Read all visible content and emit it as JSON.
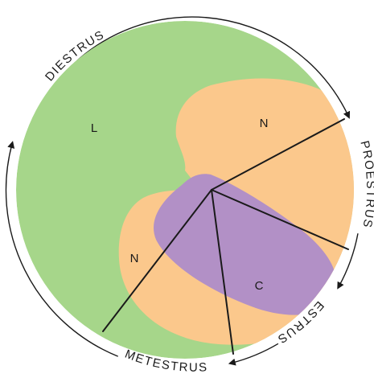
{
  "phases": {
    "diestrus": "DIESTRUS",
    "proestrus": "PROESTRUS",
    "estrus": "ESTRUS",
    "metestrus": "METESTRUS"
  },
  "regions": {
    "lymphocytes": "L",
    "neutrophils_upper": "N",
    "neutrophils_lower": "N",
    "cornified": "C"
  },
  "colors": {
    "lymphocyte_region": "#a6d68a",
    "neutrophil_region": "#fbc88c",
    "cornified_region": "#b290c6",
    "lines": "#1a1a1a"
  }
}
